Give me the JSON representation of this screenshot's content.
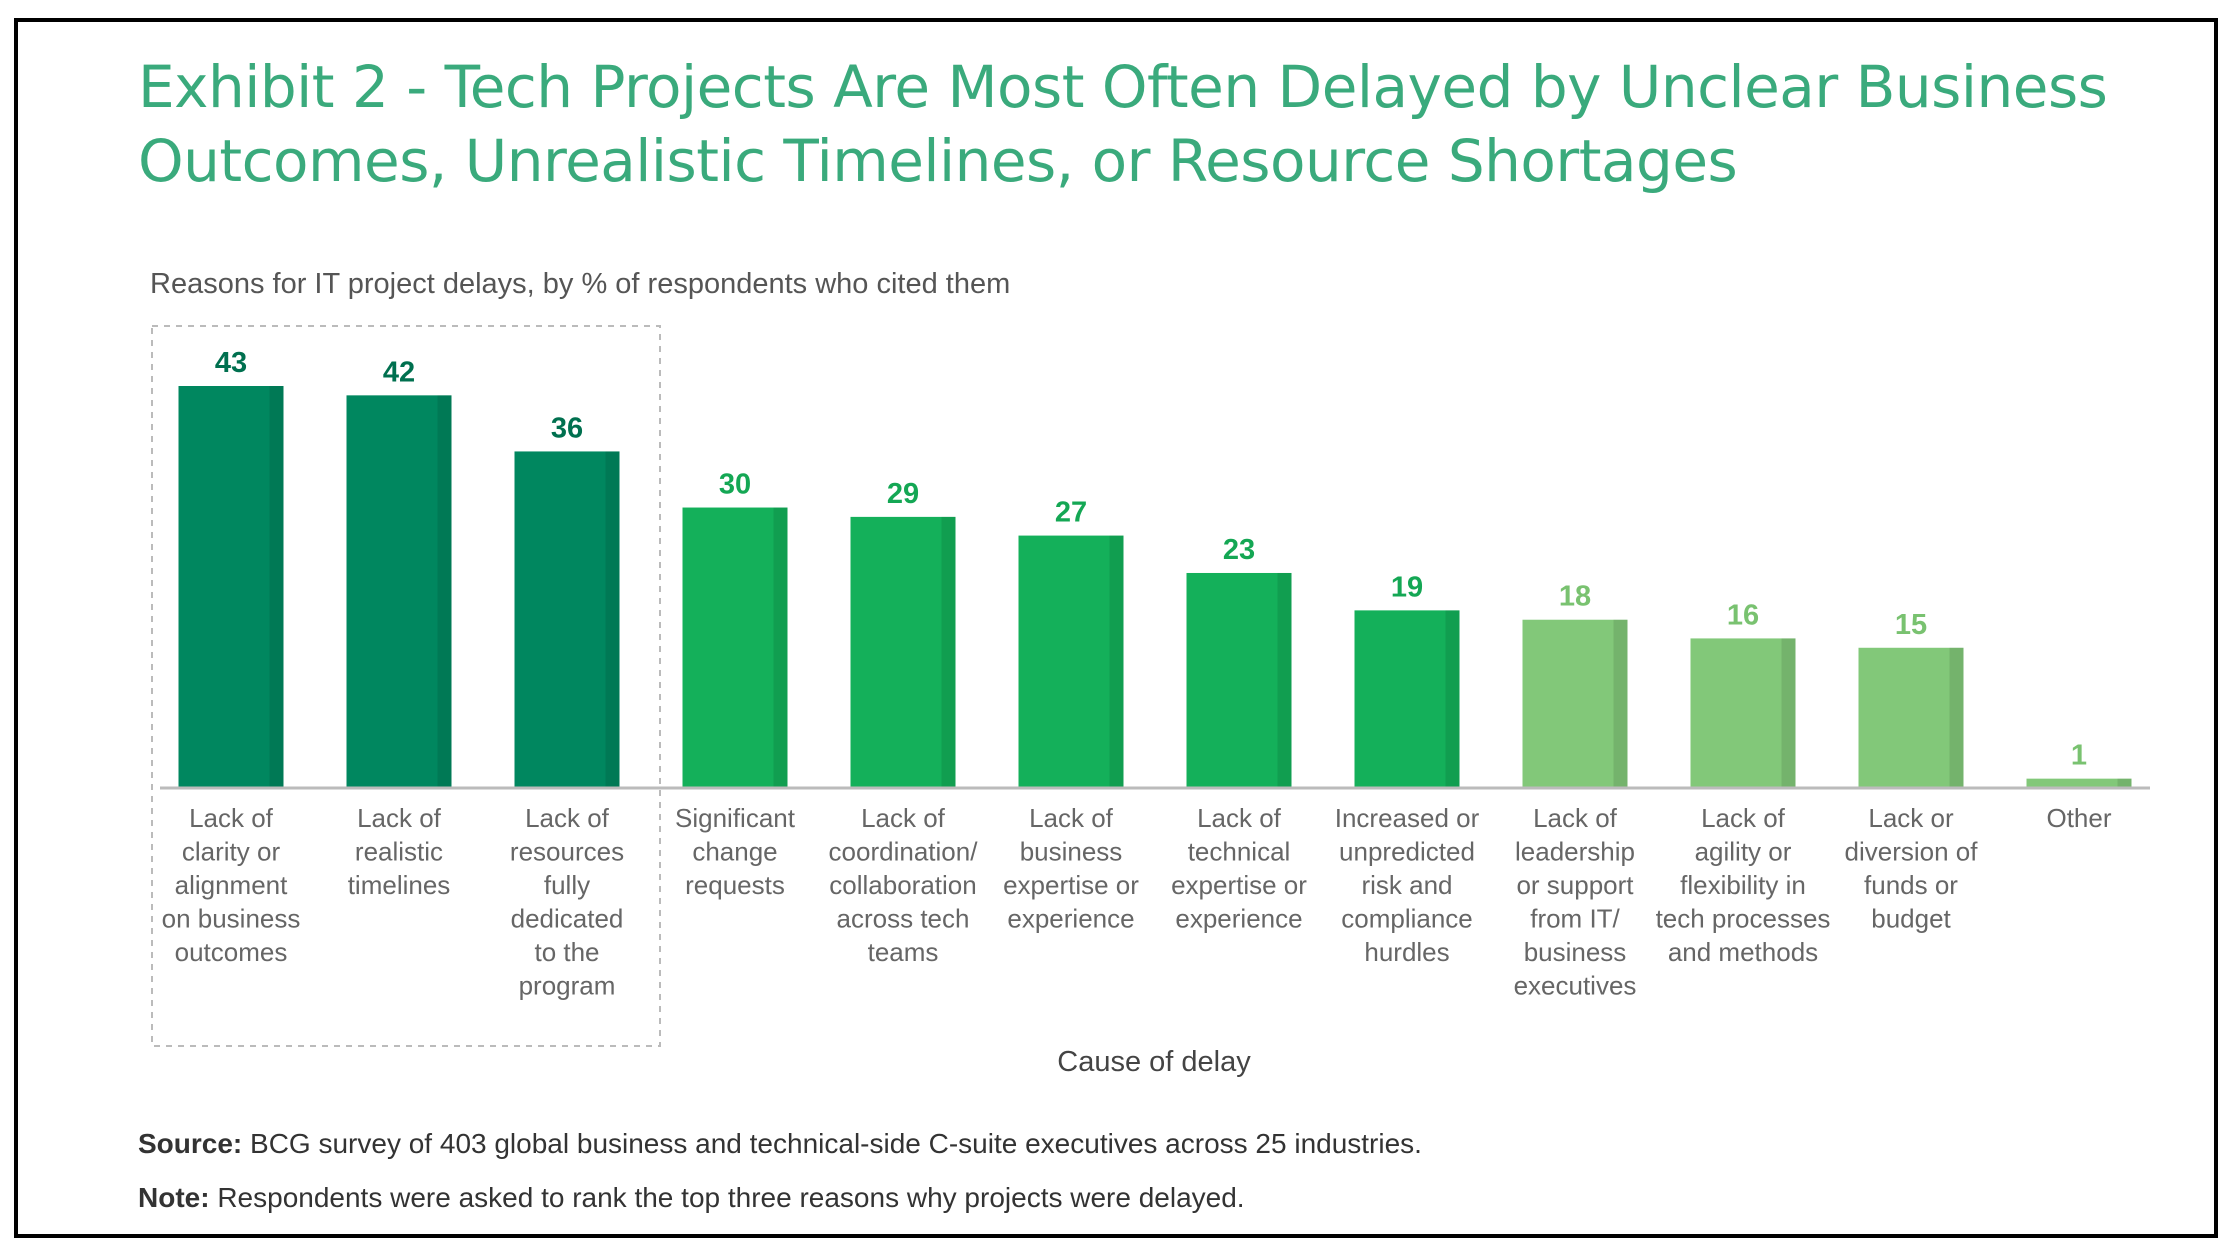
{
  "title": "Exhibit 2 - Tech Projects Are Most Often Delayed by Unclear Business Outcomes, Unrealistic Timelines, or Resource Shortages",
  "subtitle": "Reasons for IT project delays, by % of respondents who cited them",
  "footnotes": {
    "source_label": "Source:",
    "source_text": "BCG survey of 403 global business and technical-side C-suite executives across 25 industries.",
    "note_label": "Note:",
    "note_text": "Respondents were asked to rank the top three reasons why projects were delayed."
  },
  "colors": {
    "title": "#3aaa7c",
    "tier_dark": "#00875f",
    "tier_mid": "#14b05a",
    "tier_light": "#82c879"
  },
  "chart_data": {
    "type": "bar",
    "title": "Reasons for IT project delays, by % of respondents who cited them",
    "xlabel": "Cause of delay",
    "ylabel": "",
    "ylim": [
      0,
      45
    ],
    "grid": false,
    "highlight_group": "first three categories enclosed in dashed box",
    "categories": [
      "Lack of clarity or alignment on business outcomes",
      "Lack of realistic timelines",
      "Lack of resources fully dedicated to the program",
      "Significant change requests",
      "Lack of coordination/ collaboration across tech teams",
      "Lack of business expertise or experience",
      "Lack of technical expertise or experience",
      "Increased or unpredicted risk and compliance hurdles",
      "Lack of leadership or support from IT/ business executives",
      "Lack of agility or flexibility in tech processes and methods",
      "Lack or diversion of funds or budget",
      "Other"
    ],
    "label_lines": [
      [
        "Lack of",
        "clarity or",
        "alignment",
        "on business",
        "outcomes"
      ],
      [
        "Lack of",
        "realistic",
        "timelines"
      ],
      [
        "Lack of",
        "resources",
        "fully",
        "dedicated",
        "to the",
        "program"
      ],
      [
        "Significant",
        "change",
        "requests"
      ],
      [
        "Lack of",
        "coordination/",
        "collaboration",
        "across tech",
        "teams"
      ],
      [
        "Lack of",
        "business",
        "expertise or",
        "experience"
      ],
      [
        "Lack of",
        "technical",
        "expertise or",
        "experience"
      ],
      [
        "Increased or",
        "unpredicted",
        "risk and",
        "compliance",
        "hurdles"
      ],
      [
        "Lack of",
        "leadership",
        "or support",
        "from IT/",
        "business",
        "executives"
      ],
      [
        "Lack of",
        "agility or",
        "flexibility in",
        "tech processes",
        "and methods"
      ],
      [
        "Lack or",
        "diversion of",
        "funds or",
        "budget"
      ],
      [
        "Other"
      ]
    ],
    "values": [
      43,
      42,
      36,
      30,
      29,
      27,
      23,
      19,
      18,
      16,
      15,
      1
    ],
    "tiers": [
      "dark",
      "dark",
      "dark",
      "mid",
      "mid",
      "mid",
      "mid",
      "mid",
      "light",
      "light",
      "light",
      "light"
    ]
  }
}
